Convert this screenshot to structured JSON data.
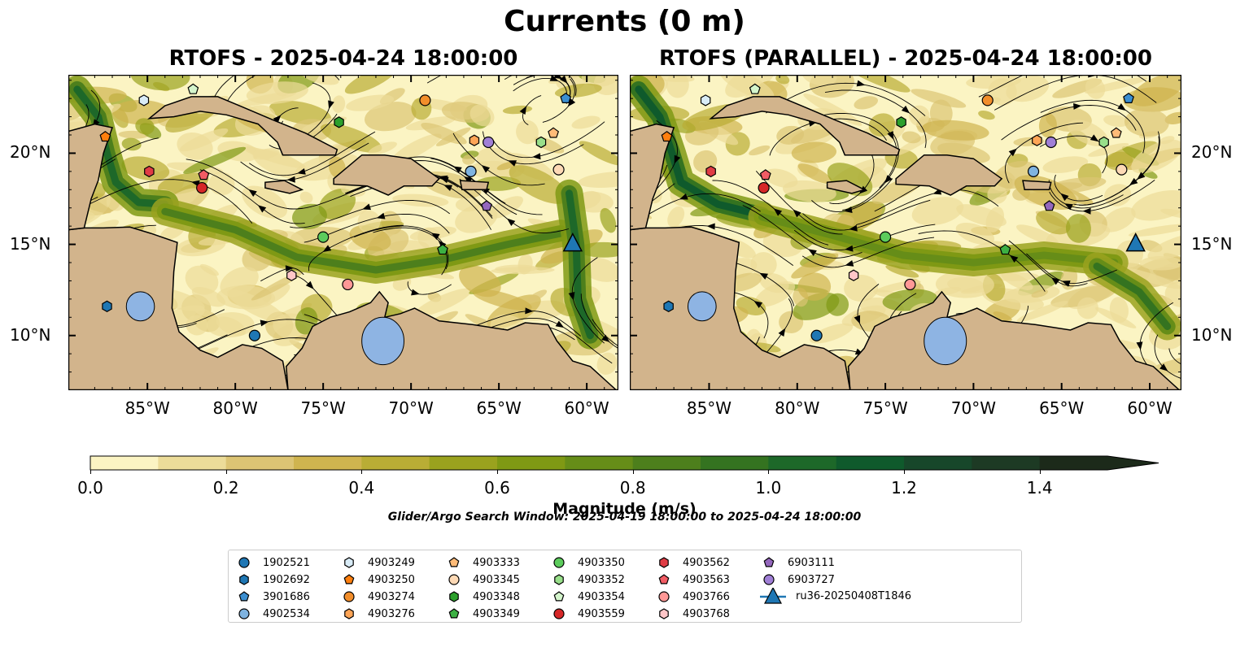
{
  "title": "Currents (0 m)",
  "panels": [
    {
      "title": "RTOFS - 2025-04-24 18:00:00"
    },
    {
      "title": "RTOFS (PARALLEL) - 2025-04-24 18:00:00"
    }
  ],
  "lon_ticks": [
    "85°W",
    "80°W",
    "75°W",
    "70°W",
    "65°W",
    "60°W"
  ],
  "lat_ticks": [
    "20°N",
    "15°N",
    "10°N"
  ],
  "colorbar": {
    "label": "Magnitude (m/s)",
    "ticks": [
      "0.0",
      "0.2",
      "0.4",
      "0.6",
      "0.8",
      "1.0",
      "1.2",
      "1.4"
    ],
    "colors": [
      "#fbf4c3",
      "#ecdc99",
      "#dcc474",
      "#cfb44f",
      "#b9ad35",
      "#9aa21e",
      "#7f9914",
      "#668d18",
      "#4d7f1c",
      "#347320",
      "#1d6829",
      "#0f5a2c",
      "#17472a",
      "#1d3a24",
      "#1c2a1a"
    ]
  },
  "search_window": "Glider/Argo Search Window: 2025-04-19 18:00:00 to 2025-04-24 18:00:00",
  "colors": {
    "land": "#d2b48c",
    "lake": "#8eb4e3"
  },
  "legend": [
    {
      "label": "1902521",
      "shape": "circle",
      "color": "#1f77b4"
    },
    {
      "label": "1902692",
      "shape": "hexagon",
      "color": "#1f77b4"
    },
    {
      "label": "3901686",
      "shape": "pentagon",
      "color": "#3b8ed0"
    },
    {
      "label": "4902534",
      "shape": "circle",
      "color": "#7fb3e0"
    },
    {
      "label": "4903249",
      "shape": "hexagon",
      "color": "#d9ecf7"
    },
    {
      "label": "4903250",
      "shape": "pentagon",
      "color": "#ff7f0e"
    },
    {
      "label": "4903274",
      "shape": "circle",
      "color": "#f28e2b"
    },
    {
      "label": "4903276",
      "shape": "hexagon",
      "color": "#ffa556"
    },
    {
      "label": "4903333",
      "shape": "pentagon",
      "color": "#ffbb78"
    },
    {
      "label": "4903345",
      "shape": "circle",
      "color": "#fdd9b5"
    },
    {
      "label": "4903348",
      "shape": "hexagon",
      "color": "#2ca02c"
    },
    {
      "label": "4903349",
      "shape": "pentagon",
      "color": "#3cb043"
    },
    {
      "label": "4903350",
      "shape": "circle",
      "color": "#5ccc5c"
    },
    {
      "label": "4903352",
      "shape": "hexagon",
      "color": "#98df8a"
    },
    {
      "label": "4903354",
      "shape": "pentagon",
      "color": "#d4f5cc"
    },
    {
      "label": "4903559",
      "shape": "circle",
      "color": "#d62728"
    },
    {
      "label": "4903562",
      "shape": "hexagon",
      "color": "#e03c45"
    },
    {
      "label": "4903563",
      "shape": "pentagon",
      "color": "#f25c64"
    },
    {
      "label": "4903766",
      "shape": "circle",
      "color": "#ff9896"
    },
    {
      "label": "4903768",
      "shape": "hexagon",
      "color": "#ffc6c8"
    },
    {
      "label": "6903111",
      "shape": "pentagon",
      "color": "#9467bd"
    },
    {
      "label": "6903727",
      "shape": "circle",
      "color": "#a07fd6"
    },
    {
      "label": "ru36-20250408T1846",
      "shape": "triangle",
      "color": "#1f77b4"
    }
  ],
  "floats": [
    {
      "id": "1902521",
      "lon": -78.9,
      "lat": 10.0
    },
    {
      "id": "1902692",
      "lon": -87.3,
      "lat": 11.6
    },
    {
      "id": "3901686",
      "lon": -61.2,
      "lat": 23.0
    },
    {
      "id": "4902534",
      "lon": -66.6,
      "lat": 19.0
    },
    {
      "id": "4903249",
      "lon": -85.2,
      "lat": 22.9
    },
    {
      "id": "4903250",
      "lon": -87.4,
      "lat": 20.9
    },
    {
      "id": "4903274",
      "lon": -69.2,
      "lat": 22.9
    },
    {
      "id": "4903276",
      "lon": -66.4,
      "lat": 20.7
    },
    {
      "id": "4903333",
      "lon": -61.9,
      "lat": 21.1
    },
    {
      "id": "4903345",
      "lon": -61.6,
      "lat": 19.1
    },
    {
      "id": "4903348",
      "lon": -74.1,
      "lat": 21.7
    },
    {
      "id": "4903349",
      "lon": -68.2,
      "lat": 14.7
    },
    {
      "id": "4903350",
      "lon": -75.0,
      "lat": 15.4
    },
    {
      "id": "4903352",
      "lon": -62.6,
      "lat": 20.6
    },
    {
      "id": "4903354",
      "lon": -82.4,
      "lat": 23.5
    },
    {
      "id": "4903559",
      "lon": -81.9,
      "lat": 18.1
    },
    {
      "id": "4903562",
      "lon": -84.9,
      "lat": 19.0
    },
    {
      "id": "4903563",
      "lon": -81.8,
      "lat": 18.8
    },
    {
      "id": "4903766",
      "lon": -73.6,
      "lat": 12.8
    },
    {
      "id": "4903768",
      "lon": -76.8,
      "lat": 13.3
    },
    {
      "id": "6903111",
      "lon": -65.7,
      "lat": 17.1
    },
    {
      "id": "6903727",
      "lon": -65.6,
      "lat": 20.6
    }
  ],
  "glider": {
    "id": "ru36-20250408T1846",
    "lon": -60.8,
    "lat": 15.0
  }
}
